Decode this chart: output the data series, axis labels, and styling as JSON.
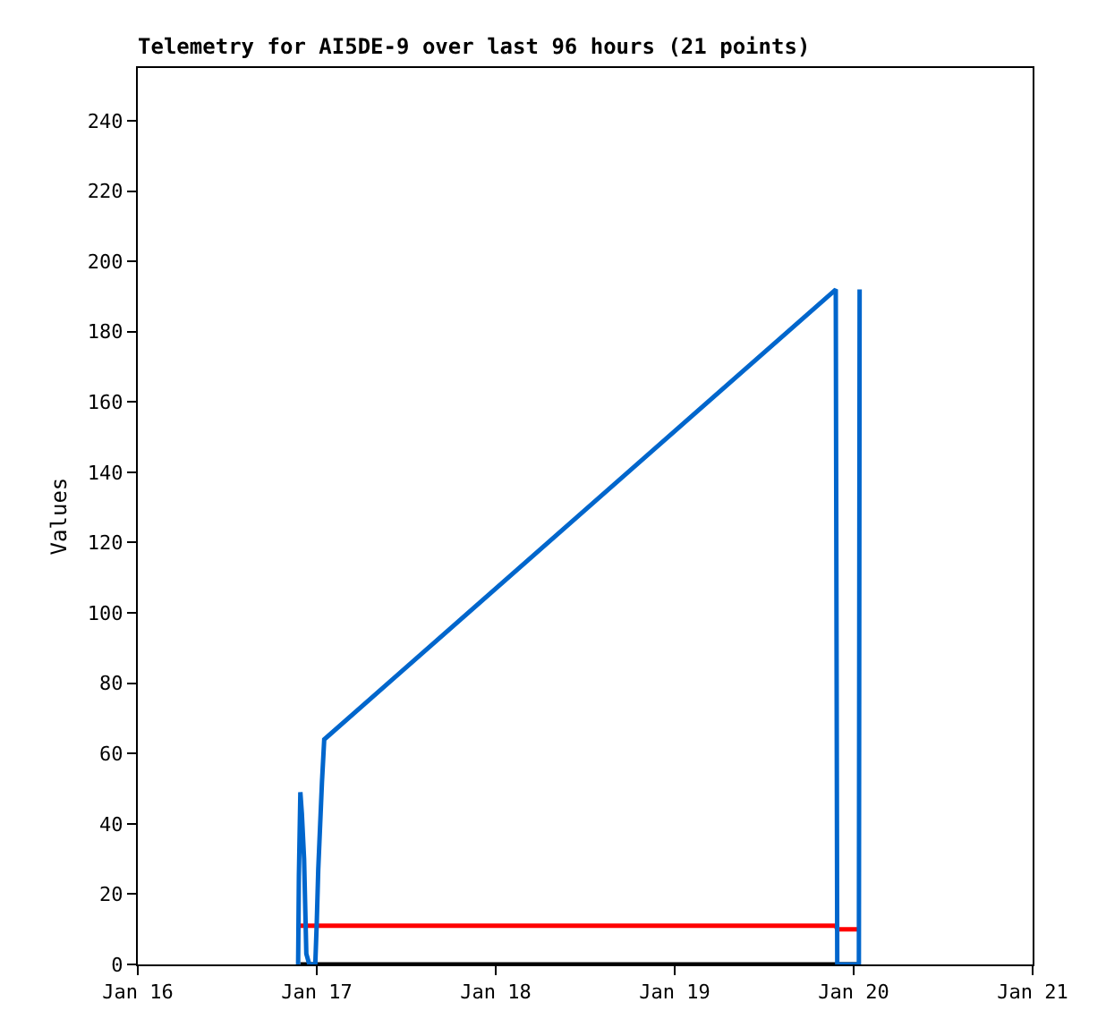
{
  "chart_data": {
    "type": "line",
    "title": "Telemetry for AI5DE-9 over last 96 hours (21 points)",
    "ylabel": "Values",
    "series": [
      {
        "color": "#000000",
        "x": [
          "--01-16T21:48",
          "--01-20T00:42"
        ],
        "values": [
          0,
          0
        ]
      },
      {
        "color": "#ff0000",
        "x": [
          "--01-16T21:48",
          "--01-19T21:36",
          "--01-19T21:48",
          "--01-20T00:42"
        ],
        "values": [
          11,
          11,
          10,
          10
        ]
      },
      {
        "color": "#0066cc",
        "x": [
          "--01-16T21:30",
          "--01-16T21:36",
          "--01-16T21:48",
          "--01-16T22:00",
          "--01-16T22:18",
          "--01-16T22:36",
          "--01-16T23:00",
          "--01-16T23:48",
          "--01-17T00:00",
          "--01-17T00:12",
          "--01-17T00:42",
          "--01-17T01:00",
          "--01-19T21:36",
          "--01-19T21:48",
          "--01-20T00:42",
          "--01-20T00:48"
        ],
        "values": [
          0,
          25,
          49,
          43,
          30,
          3,
          0,
          0,
          12,
          27,
          52,
          64,
          192,
          0,
          0,
          192
        ]
      }
    ],
    "xlim": [
      "--01-16",
      "--01-21"
    ],
    "xticks": [
      {
        "value": "--01-16",
        "label": "Jan 16"
      },
      {
        "value": "--01-17",
        "label": "Jan 17"
      },
      {
        "value": "--01-18",
        "label": "Jan 18"
      },
      {
        "value": "--01-19",
        "label": "Jan 19"
      },
      {
        "value": "--01-20",
        "label": "Jan 20"
      },
      {
        "value": "--01-21",
        "label": "Jan 21"
      }
    ],
    "ylim": [
      0,
      255
    ],
    "yticks": [
      0,
      20,
      40,
      60,
      80,
      100,
      120,
      140,
      160,
      180,
      200,
      220,
      240
    ],
    "marker": "none",
    "line_style": "solid"
  }
}
